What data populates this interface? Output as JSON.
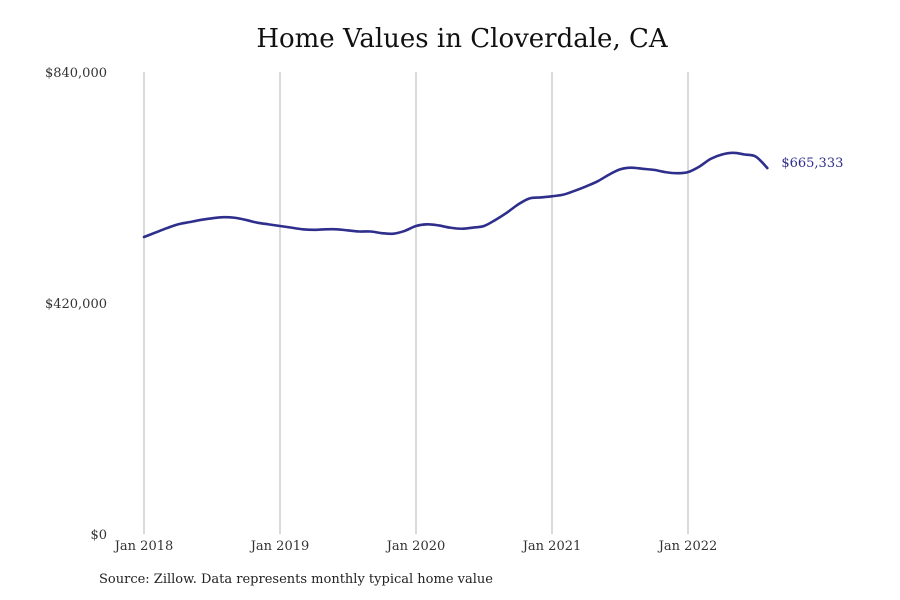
{
  "chart_data": {
    "type": "line",
    "title": "Home Values in Cloverdale, CA",
    "xlabel": "",
    "ylabel": "",
    "source": "Source: Zillow. Data represents monthly typical home value",
    "ylim": [
      0,
      840000
    ],
    "y_ticks": [
      {
        "value": 0,
        "label": "$0"
      },
      {
        "value": 420000,
        "label": "$420,000"
      },
      {
        "value": 840000,
        "label": "$840,000"
      }
    ],
    "x_ticks": [
      {
        "value": "2018-01",
        "label": "Jan 2018"
      },
      {
        "value": "2019-01",
        "label": "Jan 2019"
      },
      {
        "value": "2020-01",
        "label": "Jan 2020"
      },
      {
        "value": "2021-01",
        "label": "Jan 2021"
      },
      {
        "value": "2022-01",
        "label": "Jan 2022"
      }
    ],
    "grid": {
      "vertical": true,
      "horizontal": false
    },
    "line_color": "#2e2e8c",
    "grid_color": "#b3b3b3",
    "series": [
      {
        "name": "",
        "end_label": "$665,333",
        "x": [
          "2018-01",
          "2018-02",
          "2018-03",
          "2018-04",
          "2018-05",
          "2018-06",
          "2018-07",
          "2018-08",
          "2018-09",
          "2018-10",
          "2018-11",
          "2018-12",
          "2019-01",
          "2019-02",
          "2019-03",
          "2019-04",
          "2019-05",
          "2019-06",
          "2019-07",
          "2019-08",
          "2019-09",
          "2019-10",
          "2019-11",
          "2019-12",
          "2020-01",
          "2020-02",
          "2020-03",
          "2020-04",
          "2020-05",
          "2020-06",
          "2020-07",
          "2020-08",
          "2020-09",
          "2020-10",
          "2020-11",
          "2020-12",
          "2021-01",
          "2021-02",
          "2021-03",
          "2021-04",
          "2021-05",
          "2021-06",
          "2021-07",
          "2021-08",
          "2021-09",
          "2021-10",
          "2021-11",
          "2021-12",
          "2022-01",
          "2022-02",
          "2022-03",
          "2022-04",
          "2022-05",
          "2022-06",
          "2022-07",
          "2022-08"
        ],
        "y": [
          540000,
          548000,
          556000,
          563000,
          567000,
          571000,
          574000,
          576000,
          575000,
          571000,
          566000,
          563000,
          560000,
          557000,
          554000,
          553000,
          554000,
          554000,
          552000,
          550000,
          550000,
          547000,
          546000,
          551000,
          560000,
          563000,
          561000,
          557000,
          555000,
          557000,
          560000,
          571000,
          584000,
          599000,
          610000,
          612000,
          614000,
          617000,
          624000,
          632000,
          641000,
          653000,
          663000,
          666000,
          664000,
          662000,
          658000,
          656000,
          658000,
          668000,
          682000,
          690000,
          693000,
          690000,
          686000,
          665333
        ]
      }
    ]
  }
}
